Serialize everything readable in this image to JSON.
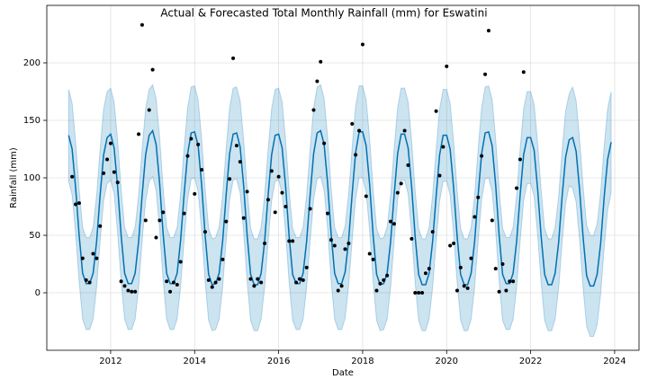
{
  "chart_data": {
    "type": "forecast",
    "title": "Actual & Forecasted Total Monthly Rainfall (mm) for Eswatini",
    "x_label": "Date",
    "y_label": "Rainfall (mm)",
    "xlim": [
      2010.48,
      2024.58
    ],
    "ylim": [
      -50,
      250
    ],
    "xticks": [
      2012,
      2014,
      2016,
      2018,
      2020,
      2022,
      2024
    ],
    "yticks": [
      0,
      50,
      100,
      150,
      200
    ],
    "grid": true,
    "series": [
      {
        "color": "#0072B2",
        "band_color": "#0072B2",
        "x": [
          2011,
          2011.083,
          2011.167,
          2011.25,
          2011.333,
          2011.417,
          2011.5,
          2011.583,
          2011.667,
          2011.75,
          2011.833,
          2011.917,
          2012,
          2012.083,
          2012.167,
          2012.25,
          2012.333,
          2012.417,
          2012.5,
          2012.583,
          2012.667,
          2012.75,
          2012.833,
          2012.917,
          2013,
          2013.083,
          2013.167,
          2013.25,
          2013.333,
          2013.417,
          2013.5,
          2013.583,
          2013.667,
          2013.75,
          2013.833,
          2013.917,
          2014,
          2014.083,
          2014.167,
          2014.25,
          2014.333,
          2014.417,
          2014.5,
          2014.583,
          2014.667,
          2014.75,
          2014.833,
          2014.917,
          2015,
          2015.083,
          2015.167,
          2015.25,
          2015.333,
          2015.417,
          2015.5,
          2015.583,
          2015.667,
          2015.75,
          2015.833,
          2015.917,
          2016,
          2016.083,
          2016.167,
          2016.25,
          2016.333,
          2016.417,
          2016.5,
          2016.583,
          2016.667,
          2016.75,
          2016.833,
          2016.917,
          2017,
          2017.083,
          2017.167,
          2017.25,
          2017.333,
          2017.417,
          2017.5,
          2017.583,
          2017.667,
          2017.75,
          2017.833,
          2017.917,
          2018,
          2018.083,
          2018.167,
          2018.25,
          2018.333,
          2018.417,
          2018.5,
          2018.583,
          2018.667,
          2018.75,
          2018.833,
          2018.917,
          2019,
          2019.083,
          2019.167,
          2019.25,
          2019.333,
          2019.417,
          2019.5,
          2019.583,
          2019.667,
          2019.75,
          2019.833,
          2019.917,
          2020,
          2020.083,
          2020.167,
          2020.25,
          2020.333,
          2020.417,
          2020.5,
          2020.583,
          2020.667,
          2020.75,
          2020.833,
          2020.917,
          2021,
          2021.083,
          2021.167,
          2021.25,
          2021.333,
          2021.417,
          2021.5,
          2021.583,
          2021.667,
          2021.75,
          2021.833,
          2021.917,
          2022,
          2022.083,
          2022.167,
          2022.25,
          2022.333,
          2022.417,
          2022.5,
          2022.583,
          2022.667,
          2022.75,
          2022.833,
          2022.917,
          2023,
          2023.083,
          2023.167,
          2023.25,
          2023.333,
          2023.417,
          2023.5,
          2023.583,
          2023.667,
          2023.75,
          2023.833,
          2023.917
        ],
        "values": [
          137,
          125,
          91,
          50,
          17,
          8,
          8,
          17,
          45,
          85,
          120,
          135,
          138,
          126,
          92,
          50,
          17,
          8,
          8,
          17,
          45,
          85,
          120,
          137,
          141,
          129,
          95,
          51,
          17,
          8,
          8,
          17,
          46,
          86,
          121,
          139,
          140,
          128,
          94,
          50,
          16,
          7,
          8,
          17,
          45,
          85,
          121,
          138,
          139,
          127,
          93,
          50,
          16,
          7,
          7,
          17,
          45,
          85,
          120,
          137,
          138,
          126,
          92,
          49,
          16,
          8,
          8,
          17,
          45,
          85,
          121,
          139,
          141,
          129,
          95,
          51,
          17,
          8,
          8,
          18,
          46,
          86,
          122,
          140,
          140,
          128,
          94,
          50,
          16,
          7,
          8,
          17,
          45,
          85,
          121,
          138,
          138,
          126,
          92,
          49,
          16,
          7,
          7,
          17,
          45,
          84,
          120,
          137,
          137,
          125,
          91,
          49,
          16,
          7,
          7,
          17,
          45,
          85,
          121,
          139,
          140,
          128,
          94,
          50,
          16,
          8,
          8,
          17,
          45,
          85,
          120,
          135,
          135,
          124,
          90,
          49,
          16,
          7,
          7,
          17,
          44,
          84,
          118,
          133,
          135,
          123,
          89,
          48,
          15,
          6,
          6,
          16,
          43,
          83,
          116,
          131
        ],
        "upper": [
          177,
          165,
          131,
          90,
          57,
          48,
          48,
          57,
          85,
          125,
          160,
          175,
          178,
          166,
          132,
          90,
          57,
          48,
          48,
          57,
          85,
          125,
          160,
          177,
          181,
          169,
          135,
          91,
          57,
          48,
          48,
          57,
          86,
          126,
          161,
          179,
          180,
          168,
          134,
          90,
          56,
          47,
          48,
          57,
          85,
          125,
          161,
          178,
          179,
          167,
          133,
          90,
          56,
          47,
          47,
          57,
          85,
          125,
          160,
          177,
          178,
          166,
          132,
          89,
          56,
          48,
          48,
          57,
          85,
          125,
          161,
          179,
          181,
          169,
          135,
          91,
          57,
          48,
          48,
          58,
          86,
          126,
          162,
          180,
          180,
          168,
          134,
          90,
          56,
          47,
          48,
          57,
          85,
          125,
          161,
          178,
          178,
          166,
          132,
          89,
          56,
          47,
          47,
          57,
          85,
          124,
          160,
          177,
          177,
          165,
          131,
          89,
          56,
          47,
          47,
          57,
          85,
          125,
          161,
          179,
          180,
          168,
          134,
          90,
          56,
          48,
          48,
          57,
          85,
          125,
          160,
          175,
          175,
          164,
          130,
          89,
          56,
          47,
          47,
          57,
          84,
          124,
          158,
          173,
          179,
          167,
          133,
          92,
          59,
          50,
          50,
          60,
          87,
          127,
          160,
          175
        ],
        "lower": [
          97,
          85,
          51,
          10,
          -23,
          -32,
          -32,
          -23,
          5,
          45,
          80,
          95,
          98,
          86,
          52,
          10,
          -23,
          -32,
          -32,
          -23,
          5,
          45,
          80,
          97,
          101,
          89,
          55,
          11,
          -23,
          -32,
          -32,
          -23,
          6,
          46,
          81,
          99,
          100,
          88,
          54,
          10,
          -24,
          -33,
          -32,
          -23,
          5,
          45,
          81,
          98,
          99,
          87,
          53,
          10,
          -24,
          -33,
          -33,
          -23,
          5,
          45,
          80,
          97,
          98,
          86,
          52,
          9,
          -24,
          -32,
          -32,
          -23,
          5,
          45,
          81,
          99,
          101,
          89,
          55,
          11,
          -23,
          -32,
          -32,
          -22,
          6,
          46,
          82,
          100,
          100,
          88,
          54,
          10,
          -24,
          -33,
          -32,
          -23,
          5,
          45,
          81,
          98,
          98,
          86,
          52,
          9,
          -24,
          -33,
          -33,
          -23,
          5,
          44,
          80,
          97,
          97,
          85,
          51,
          9,
          -24,
          -33,
          -33,
          -23,
          5,
          45,
          81,
          99,
          100,
          88,
          54,
          10,
          -24,
          -32,
          -32,
          -23,
          5,
          45,
          80,
          95,
          95,
          84,
          50,
          9,
          -24,
          -33,
          -33,
          -23,
          4,
          44,
          78,
          93,
          91,
          79,
          45,
          4,
          -29,
          -38,
          -38,
          -28,
          -1,
          39,
          72,
          87
        ]
      },
      {
        "color": "#000000",
        "x": [
          2011.083,
          2011.167,
          2011.25,
          2011.333,
          2011.417,
          2011.5,
          2011.583,
          2011.667,
          2011.75,
          2011.833,
          2011.917,
          2012,
          2012.083,
          2012.167,
          2012.25,
          2012.333,
          2012.417,
          2012.5,
          2012.583,
          2012.667,
          2012.75,
          2012.833,
          2012.917,
          2013,
          2013.083,
          2013.167,
          2013.25,
          2013.333,
          2013.417,
          2013.5,
          2013.583,
          2013.667,
          2013.75,
          2013.833,
          2013.917,
          2014,
          2014.083,
          2014.167,
          2014.25,
          2014.333,
          2014.417,
          2014.5,
          2014.583,
          2014.667,
          2014.75,
          2014.833,
          2014.917,
          2015,
          2015.083,
          2015.167,
          2015.25,
          2015.333,
          2015.417,
          2015.5,
          2015.583,
          2015.667,
          2015.75,
          2015.833,
          2015.917,
          2016,
          2016.083,
          2016.167,
          2016.25,
          2016.333,
          2016.417,
          2016.5,
          2016.583,
          2016.667,
          2016.75,
          2016.833,
          2016.917,
          2017,
          2017.083,
          2017.167,
          2017.25,
          2017.333,
          2017.417,
          2017.5,
          2017.583,
          2017.667,
          2017.75,
          2017.833,
          2017.917,
          2018,
          2018.083,
          2018.167,
          2018.25,
          2018.333,
          2018.417,
          2018.5,
          2018.583,
          2018.667,
          2018.75,
          2018.833,
          2018.917,
          2019,
          2019.083,
          2019.167,
          2019.25,
          2019.333,
          2019.417,
          2019.5,
          2019.583,
          2019.667,
          2019.75,
          2019.833,
          2019.917,
          2020,
          2020.083,
          2020.167,
          2020.25,
          2020.333,
          2020.417,
          2020.5,
          2020.583,
          2020.667,
          2020.75,
          2020.833,
          2020.917,
          2021,
          2021.083,
          2021.167,
          2021.25,
          2021.333,
          2021.417,
          2021.5,
          2021.583,
          2021.667,
          2021.75,
          2021.833
        ],
        "values": [
          101,
          77,
          78,
          30,
          11,
          9,
          34,
          30,
          58,
          104,
          116,
          130,
          105,
          96,
          10,
          6,
          2,
          1,
          1,
          138,
          233,
          63,
          159,
          194,
          48,
          63,
          70,
          10,
          1,
          9,
          7,
          27,
          69,
          119,
          134,
          86,
          129,
          107,
          53,
          11,
          5,
          9,
          12,
          29,
          62,
          99,
          204,
          128,
          114,
          65,
          88,
          12,
          6,
          12,
          9,
          43,
          81,
          106,
          70,
          101,
          87,
          75,
          45,
          45,
          9,
          12,
          11,
          22,
          73,
          159,
          184,
          201,
          130,
          69,
          46,
          41,
          2,
          6,
          38,
          43,
          147,
          120,
          141,
          216,
          84,
          34,
          29,
          2,
          8,
          11,
          15,
          62,
          60,
          87,
          95,
          141,
          111,
          47,
          0,
          0,
          0,
          17,
          21,
          53,
          158,
          102,
          127,
          197,
          41,
          43,
          2,
          22,
          6,
          4,
          30,
          66,
          83,
          119,
          190,
          228,
          63,
          21,
          1,
          25,
          2,
          10,
          10,
          91,
          116,
          192
        ]
      }
    ]
  }
}
